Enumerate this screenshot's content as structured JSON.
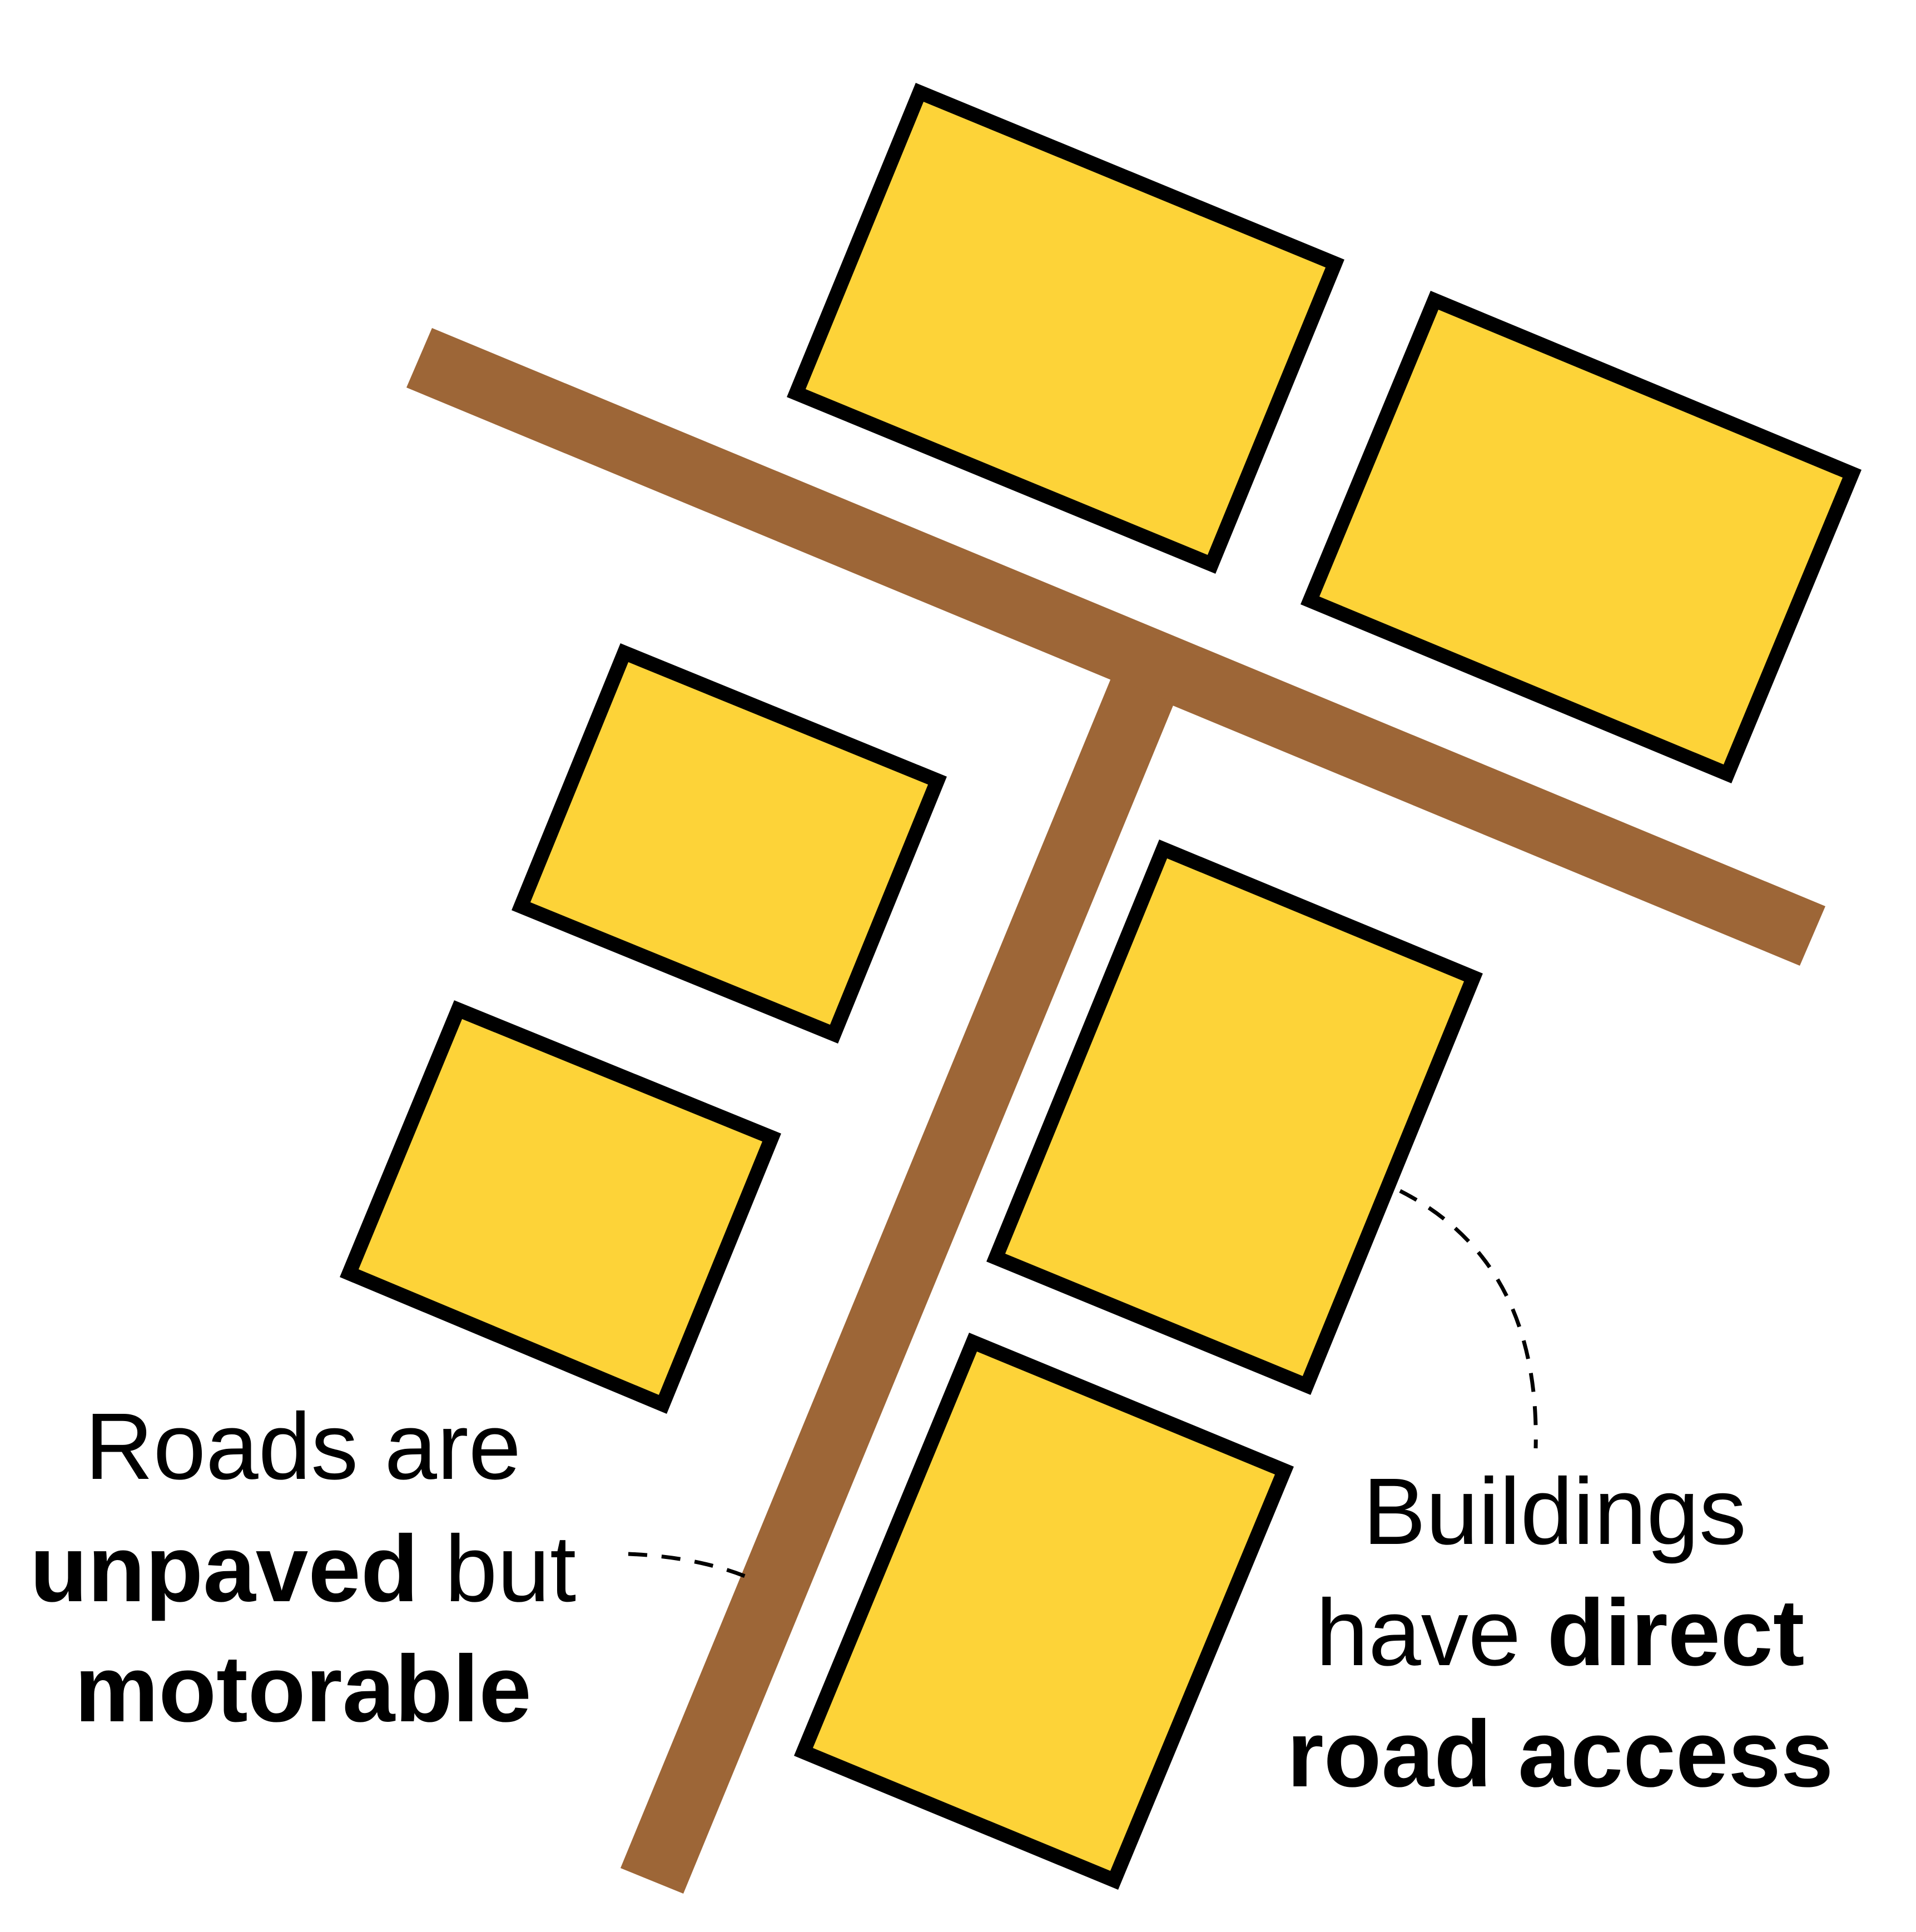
{
  "labels": {
    "roads": {
      "line1": "Roads are",
      "line2_bold": "unpaved",
      "line2_regular": " but",
      "line3_bold": "motorable"
    },
    "buildings": {
      "line1": "Buildings",
      "line2_regular": "have ",
      "line2_bold": "direct",
      "line3_bold": "road access"
    }
  },
  "colors": {
    "road": "#9d6637",
    "building_fill": "#fdd338",
    "building_outline": "#000000",
    "text": "#000000",
    "background": "#ffffff"
  }
}
